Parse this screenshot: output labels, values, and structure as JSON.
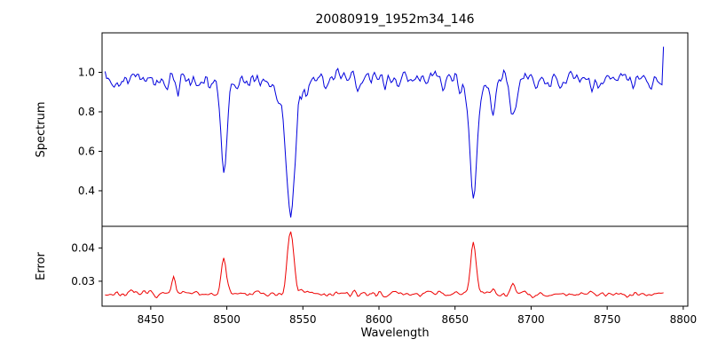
{
  "chart_data": {
    "type": "line",
    "title": "20080919_1952m34_146",
    "xlabel": "Wavelength",
    "x_ticks": [
      8450,
      8500,
      8550,
      8600,
      8650,
      8700,
      8750,
      8800
    ],
    "x_axis_limits": [
      8418,
      8803
    ],
    "x_range": [
      8420,
      8787
    ],
    "grid": false,
    "legend": "none",
    "panels": [
      {
        "ylabel": "Spectrum",
        "color": "#0000dd",
        "ylim": [
          0.22,
          1.2
        ],
        "y_ticks": [
          0.4,
          0.6,
          0.8,
          1.0
        ],
        "baseline": 0.965,
        "noise_sigma": 0.04,
        "features": [
          {
            "center": 8468,
            "amp": -0.09,
            "width": 1.5
          },
          {
            "center": 8498,
            "amp": -0.44,
            "width": 2.0
          },
          {
            "center": 8498,
            "amp": -0.06,
            "width": 5.0
          },
          {
            "center": 8542,
            "amp": -0.52,
            "width": 2.6
          },
          {
            "center": 8542,
            "amp": -0.17,
            "width": 7.0
          },
          {
            "center": 8662,
            "amp": -0.54,
            "width": 2.2
          },
          {
            "center": 8662,
            "amp": -0.09,
            "width": 6.0
          },
          {
            "center": 8675,
            "amp": -0.15,
            "width": 1.5
          },
          {
            "center": 8688,
            "amp": -0.25,
            "width": 1.8
          }
        ],
        "spike": {
          "x": 8787,
          "value": 1.13
        }
      },
      {
        "ylabel": "Error",
        "color": "#ee0000",
        "ylim": [
          0.0225,
          0.0465
        ],
        "y_ticks": [
          0.03,
          0.04
        ],
        "baseline": 0.0262,
        "noise_sigma": 0.0007,
        "features": [
          {
            "center": 8465,
            "amp": 0.0045,
            "width": 1.2
          },
          {
            "center": 8498,
            "amp": 0.011,
            "width": 1.6
          },
          {
            "center": 8542,
            "amp": 0.018,
            "width": 2.2
          },
          {
            "center": 8662,
            "amp": 0.0155,
            "width": 1.8
          },
          {
            "center": 8675,
            "amp": 0.0015,
            "width": 1.2
          },
          {
            "center": 8688,
            "amp": 0.0028,
            "width": 1.4
          }
        ]
      }
    ]
  }
}
